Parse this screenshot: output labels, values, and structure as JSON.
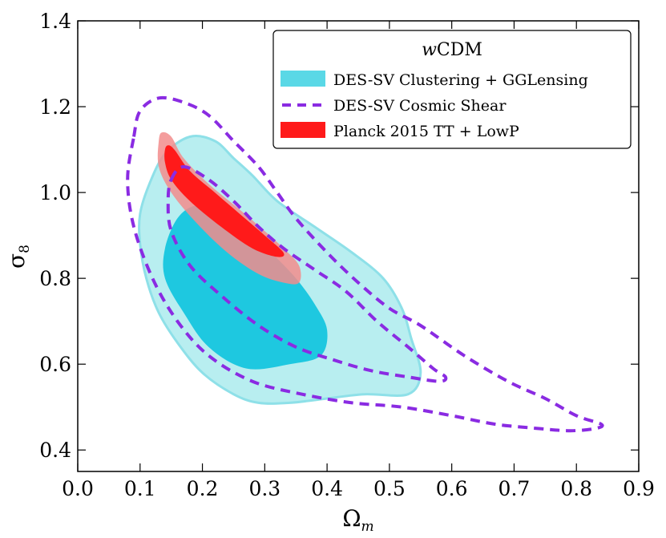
{
  "chart_data": {
    "type": "contour",
    "title": "wCDM",
    "title_parts": {
      "italic": "w",
      "normal": "CDM"
    },
    "xlabel": "Ω",
    "xlabel_sub": "m",
    "ylabel": "σ",
    "ylabel_sub": "8",
    "xlim": [
      0.0,
      0.9
    ],
    "ylim": [
      0.35,
      1.4
    ],
    "xticks": [
      "0.0",
      "0.1",
      "0.2",
      "0.3",
      "0.4",
      "0.5",
      "0.6",
      "0.7",
      "0.8",
      "0.9"
    ],
    "xtick_values": [
      0.0,
      0.1,
      0.2,
      0.3,
      0.4,
      0.5,
      0.6,
      0.7,
      0.8,
      0.9
    ],
    "yticks": [
      "0.4",
      "0.6",
      "0.8",
      "1.0",
      "1.2",
      "1.4"
    ],
    "ytick_values": [
      0.4,
      0.6,
      0.8,
      1.0,
      1.2,
      1.4
    ],
    "legend_position": "top-right",
    "series": [
      {
        "name": "DES-SV Clustering + GGLensing",
        "style": "filled",
        "color_outer": "#b8eef0",
        "color_inner": "#1ec8e0",
        "edge_color": "#8ee0e8",
        "legend_color": "#5ad8e6",
        "contours": [
          {
            "level": "95%",
            "points": [
              [
                0.14,
                1.09
              ],
              [
                0.18,
                1.13
              ],
              [
                0.22,
                1.12
              ],
              [
                0.25,
                1.08
              ],
              [
                0.28,
                1.04
              ],
              [
                0.32,
                0.98
              ],
              [
                0.38,
                0.92
              ],
              [
                0.44,
                0.86
              ],
              [
                0.49,
                0.8
              ],
              [
                0.52,
                0.73
              ],
              [
                0.535,
                0.66
              ],
              [
                0.55,
                0.58
              ],
              [
                0.53,
                0.53
              ],
              [
                0.46,
                0.53
              ],
              [
                0.4,
                0.52
              ],
              [
                0.34,
                0.51
              ],
              [
                0.29,
                0.51
              ],
              [
                0.25,
                0.53
              ],
              [
                0.2,
                0.58
              ],
              [
                0.16,
                0.65
              ],
              [
                0.13,
                0.72
              ],
              [
                0.11,
                0.8
              ],
              [
                0.1,
                0.88
              ],
              [
                0.1,
                0.95
              ],
              [
                0.115,
                1.02
              ]
            ]
          },
          {
            "level": "68%",
            "points": [
              [
                0.16,
                0.94
              ],
              [
                0.19,
                0.97
              ],
              [
                0.23,
                0.96
              ],
              [
                0.27,
                0.91
              ],
              [
                0.31,
                0.86
              ],
              [
                0.35,
                0.8
              ],
              [
                0.38,
                0.74
              ],
              [
                0.4,
                0.68
              ],
              [
                0.39,
                0.62
              ],
              [
                0.34,
                0.6
              ],
              [
                0.27,
                0.59
              ],
              [
                0.21,
                0.64
              ],
              [
                0.17,
                0.72
              ],
              [
                0.14,
                0.8
              ],
              [
                0.14,
                0.87
              ]
            ]
          }
        ]
      },
      {
        "name": "DES-SV Cosmic Shear",
        "style": "dashed",
        "color": "#8a2be2",
        "legend_color": "#8a2be2",
        "contours": [
          {
            "level": "95%",
            "points": [
              [
                0.09,
                1.13
              ],
              [
                0.1,
                1.19
              ],
              [
                0.13,
                1.22
              ],
              [
                0.17,
                1.21
              ],
              [
                0.21,
                1.18
              ],
              [
                0.25,
                1.12
              ],
              [
                0.29,
                1.06
              ],
              [
                0.32,
                1.0
              ],
              [
                0.35,
                0.94
              ],
              [
                0.4,
                0.86
              ],
              [
                0.45,
                0.79
              ],
              [
                0.5,
                0.73
              ],
              [
                0.55,
                0.69
              ],
              [
                0.62,
                0.62
              ],
              [
                0.69,
                0.56
              ],
              [
                0.75,
                0.52
              ],
              [
                0.8,
                0.48
              ],
              [
                0.84,
                0.46
              ],
              [
                0.83,
                0.45
              ],
              [
                0.79,
                0.445
              ],
              [
                0.74,
                0.45
              ],
              [
                0.67,
                0.46
              ],
              [
                0.6,
                0.48
              ],
              [
                0.52,
                0.5
              ],
              [
                0.44,
                0.51
              ],
              [
                0.36,
                0.53
              ],
              [
                0.28,
                0.56
              ],
              [
                0.21,
                0.62
              ],
              [
                0.16,
                0.7
              ],
              [
                0.12,
                0.8
              ],
              [
                0.09,
                0.92
              ],
              [
                0.08,
                1.03
              ]
            ]
          },
          {
            "level": "68%",
            "points": [
              [
                0.15,
                1.03
              ],
              [
                0.17,
                1.06
              ],
              [
                0.21,
                1.03
              ],
              [
                0.25,
                0.98
              ],
              [
                0.29,
                0.92
              ],
              [
                0.33,
                0.87
              ],
              [
                0.38,
                0.82
              ],
              [
                0.43,
                0.77
              ],
              [
                0.48,
                0.7
              ],
              [
                0.53,
                0.64
              ],
              [
                0.57,
                0.59
              ],
              [
                0.59,
                0.57
              ],
              [
                0.58,
                0.56
              ],
              [
                0.53,
                0.57
              ],
              [
                0.47,
                0.585
              ],
              [
                0.41,
                0.61
              ],
              [
                0.35,
                0.64
              ],
              [
                0.29,
                0.69
              ],
              [
                0.23,
                0.76
              ],
              [
                0.18,
                0.83
              ],
              [
                0.15,
                0.91
              ],
              [
                0.145,
                0.98
              ]
            ]
          }
        ]
      },
      {
        "name": "Planck 2015 TT + LowP",
        "style": "filled",
        "color_outer": "#f28c8c",
        "color_inner": "#ff1a1a",
        "legend_color": "#ff1a1a",
        "contours": [
          {
            "level": "95%",
            "points": [
              [
                0.13,
                1.12
              ],
              [
                0.135,
                1.14
              ],
              [
                0.15,
                1.13
              ],
              [
                0.17,
                1.08
              ],
              [
                0.21,
                1.02
              ],
              [
                0.26,
                0.96
              ],
              [
                0.3,
                0.91
              ],
              [
                0.33,
                0.87
              ],
              [
                0.355,
                0.83
              ],
              [
                0.355,
                0.79
              ],
              [
                0.33,
                0.79
              ],
              [
                0.29,
                0.81
              ],
              [
                0.24,
                0.86
              ],
              [
                0.19,
                0.93
              ],
              [
                0.15,
                1.0
              ],
              [
                0.13,
                1.06
              ]
            ]
          },
          {
            "level": "68%",
            "points": [
              [
                0.14,
                1.1
              ],
              [
                0.145,
                1.11
              ],
              [
                0.155,
                1.1
              ],
              [
                0.18,
                1.05
              ],
              [
                0.22,
                1.0
              ],
              [
                0.26,
                0.95
              ],
              [
                0.3,
                0.9
              ],
              [
                0.33,
                0.86
              ],
              [
                0.32,
                0.85
              ],
              [
                0.28,
                0.87
              ],
              [
                0.23,
                0.92
              ],
              [
                0.18,
                0.98
              ],
              [
                0.15,
                1.03
              ],
              [
                0.14,
                1.07
              ]
            ]
          }
        ]
      }
    ]
  }
}
